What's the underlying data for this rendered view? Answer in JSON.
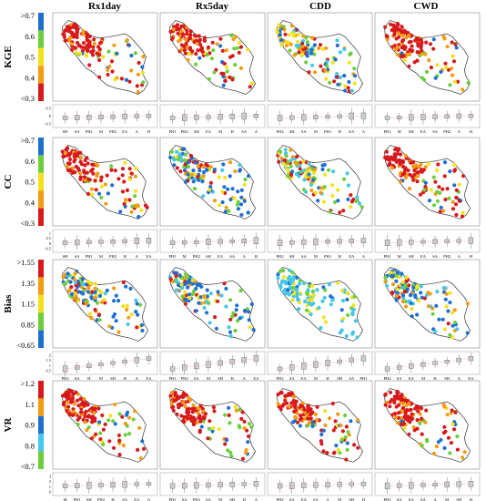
{
  "columns": [
    "Rx1day",
    "Rx5day",
    "CDD",
    "CWD"
  ],
  "colors": [
    "#d7191c",
    "#f39c12",
    "#f3e21b",
    "#6ccf3a",
    "#1f6fd1",
    "#44c7e8"
  ],
  "rows": [
    {
      "metric": "KGE",
      "legend": [
        ">0.7",
        "0.6",
        "0.5",
        "0.4",
        "<0.3"
      ],
      "legend_colors": [
        "#1f6fd1",
        "#6ccf3a",
        "#f3e21b",
        "#f39c12",
        "#d7191c"
      ],
      "yticks": [
        "0.5",
        "0",
        "-0.5"
      ],
      "dominant": [
        "red",
        "red",
        "mixed",
        "red"
      ],
      "box_labels": [
        [
          "SH",
          "SA",
          "PH1",
          "M",
          "PH2",
          "EA",
          "A",
          "H"
        ],
        [
          "PH1",
          "PH2",
          "SH",
          "EA",
          "M",
          "H",
          "SA",
          "A"
        ],
        [
          "PH2",
          "SH",
          "SA",
          "M",
          "PH1",
          "H",
          "EA",
          "A"
        ],
        [
          "PH1",
          "M",
          "SH",
          "EA",
          "SA",
          "PH2",
          "A",
          "H"
        ]
      ]
    },
    {
      "metric": "CC",
      "legend": [
        ">0.7",
        "0.6",
        "0.5",
        "0.4",
        "<0.3"
      ],
      "legend_colors": [
        "#1f6fd1",
        "#6ccf3a",
        "#f3e21b",
        "#f39c12",
        "#d7191c"
      ],
      "yticks": [
        "1",
        "0.5",
        "0",
        "-0.5"
      ],
      "dominant": [
        "red",
        "blue",
        "mixed",
        "red"
      ],
      "box_labels": [
        [
          "SH",
          "SA",
          "PH1",
          "M",
          "PH2",
          "H",
          "A",
          "EA"
        ],
        [
          "PH1",
          "M",
          "PH2",
          "SH",
          "EA",
          "SA",
          "A",
          "H"
        ],
        [
          "PH2",
          "SH",
          "SA",
          "M",
          "PH1",
          "H",
          "EA",
          "A"
        ],
        [
          "PH1",
          "M",
          "SH",
          "EA",
          "SA",
          "PH2",
          "A",
          "H"
        ]
      ]
    },
    {
      "metric": "Bias",
      "legend": [
        ">1.55",
        "1.35",
        "1.15",
        "0.85",
        "<0.65"
      ],
      "legend_colors": [
        "#d7191c",
        "#f39c12",
        "#f3e21b",
        "#6ccf3a",
        "#1f6fd1"
      ],
      "yticks": [
        "2",
        "1.5",
        "1",
        "0.5"
      ],
      "dominant": [
        "blue",
        "blue",
        "cyan",
        "blue"
      ],
      "box_labels": [
        [
          "PH2",
          "SA",
          "H",
          "M",
          "SH",
          "H",
          "A",
          "EA"
        ],
        [
          "PH1",
          "PH2",
          "SA",
          "M",
          "SH",
          "H",
          "A",
          "EA"
        ],
        [
          "PH2",
          "SA",
          "EA",
          "M",
          "H",
          "SH",
          "SA",
          "PH1"
        ],
        [
          "PH2",
          "SA",
          "EA",
          "M",
          "H",
          "SH",
          "A",
          "EA"
        ]
      ]
    },
    {
      "metric": "VR",
      "legend": [
        ">1.2",
        "1.1",
        "0.9",
        "0.8",
        "<0.7"
      ],
      "legend_colors": [
        "#d7191c",
        "#f39c12",
        "#1f6fd1",
        "#44c7e8",
        "#6ccf3a"
      ],
      "yticks": [
        "3",
        "2",
        "1",
        "0"
      ],
      "dominant": [
        "red",
        "red",
        "red",
        "red"
      ],
      "box_labels": [
        [
          "M",
          "PH1",
          "SH",
          "PH2",
          "H",
          "SA",
          "EA",
          "A"
        ],
        [
          "PH1",
          "SA",
          "PH2",
          "SA",
          "M",
          "SH",
          "H",
          "A"
        ],
        [
          "PH2",
          "SA",
          "EA",
          "SA",
          "A",
          "M",
          "SH",
          "H"
        ],
        [
          "PH2",
          "SA",
          "EA",
          "SA",
          "A",
          "M",
          "SH",
          "H"
        ]
      ]
    }
  ]
}
